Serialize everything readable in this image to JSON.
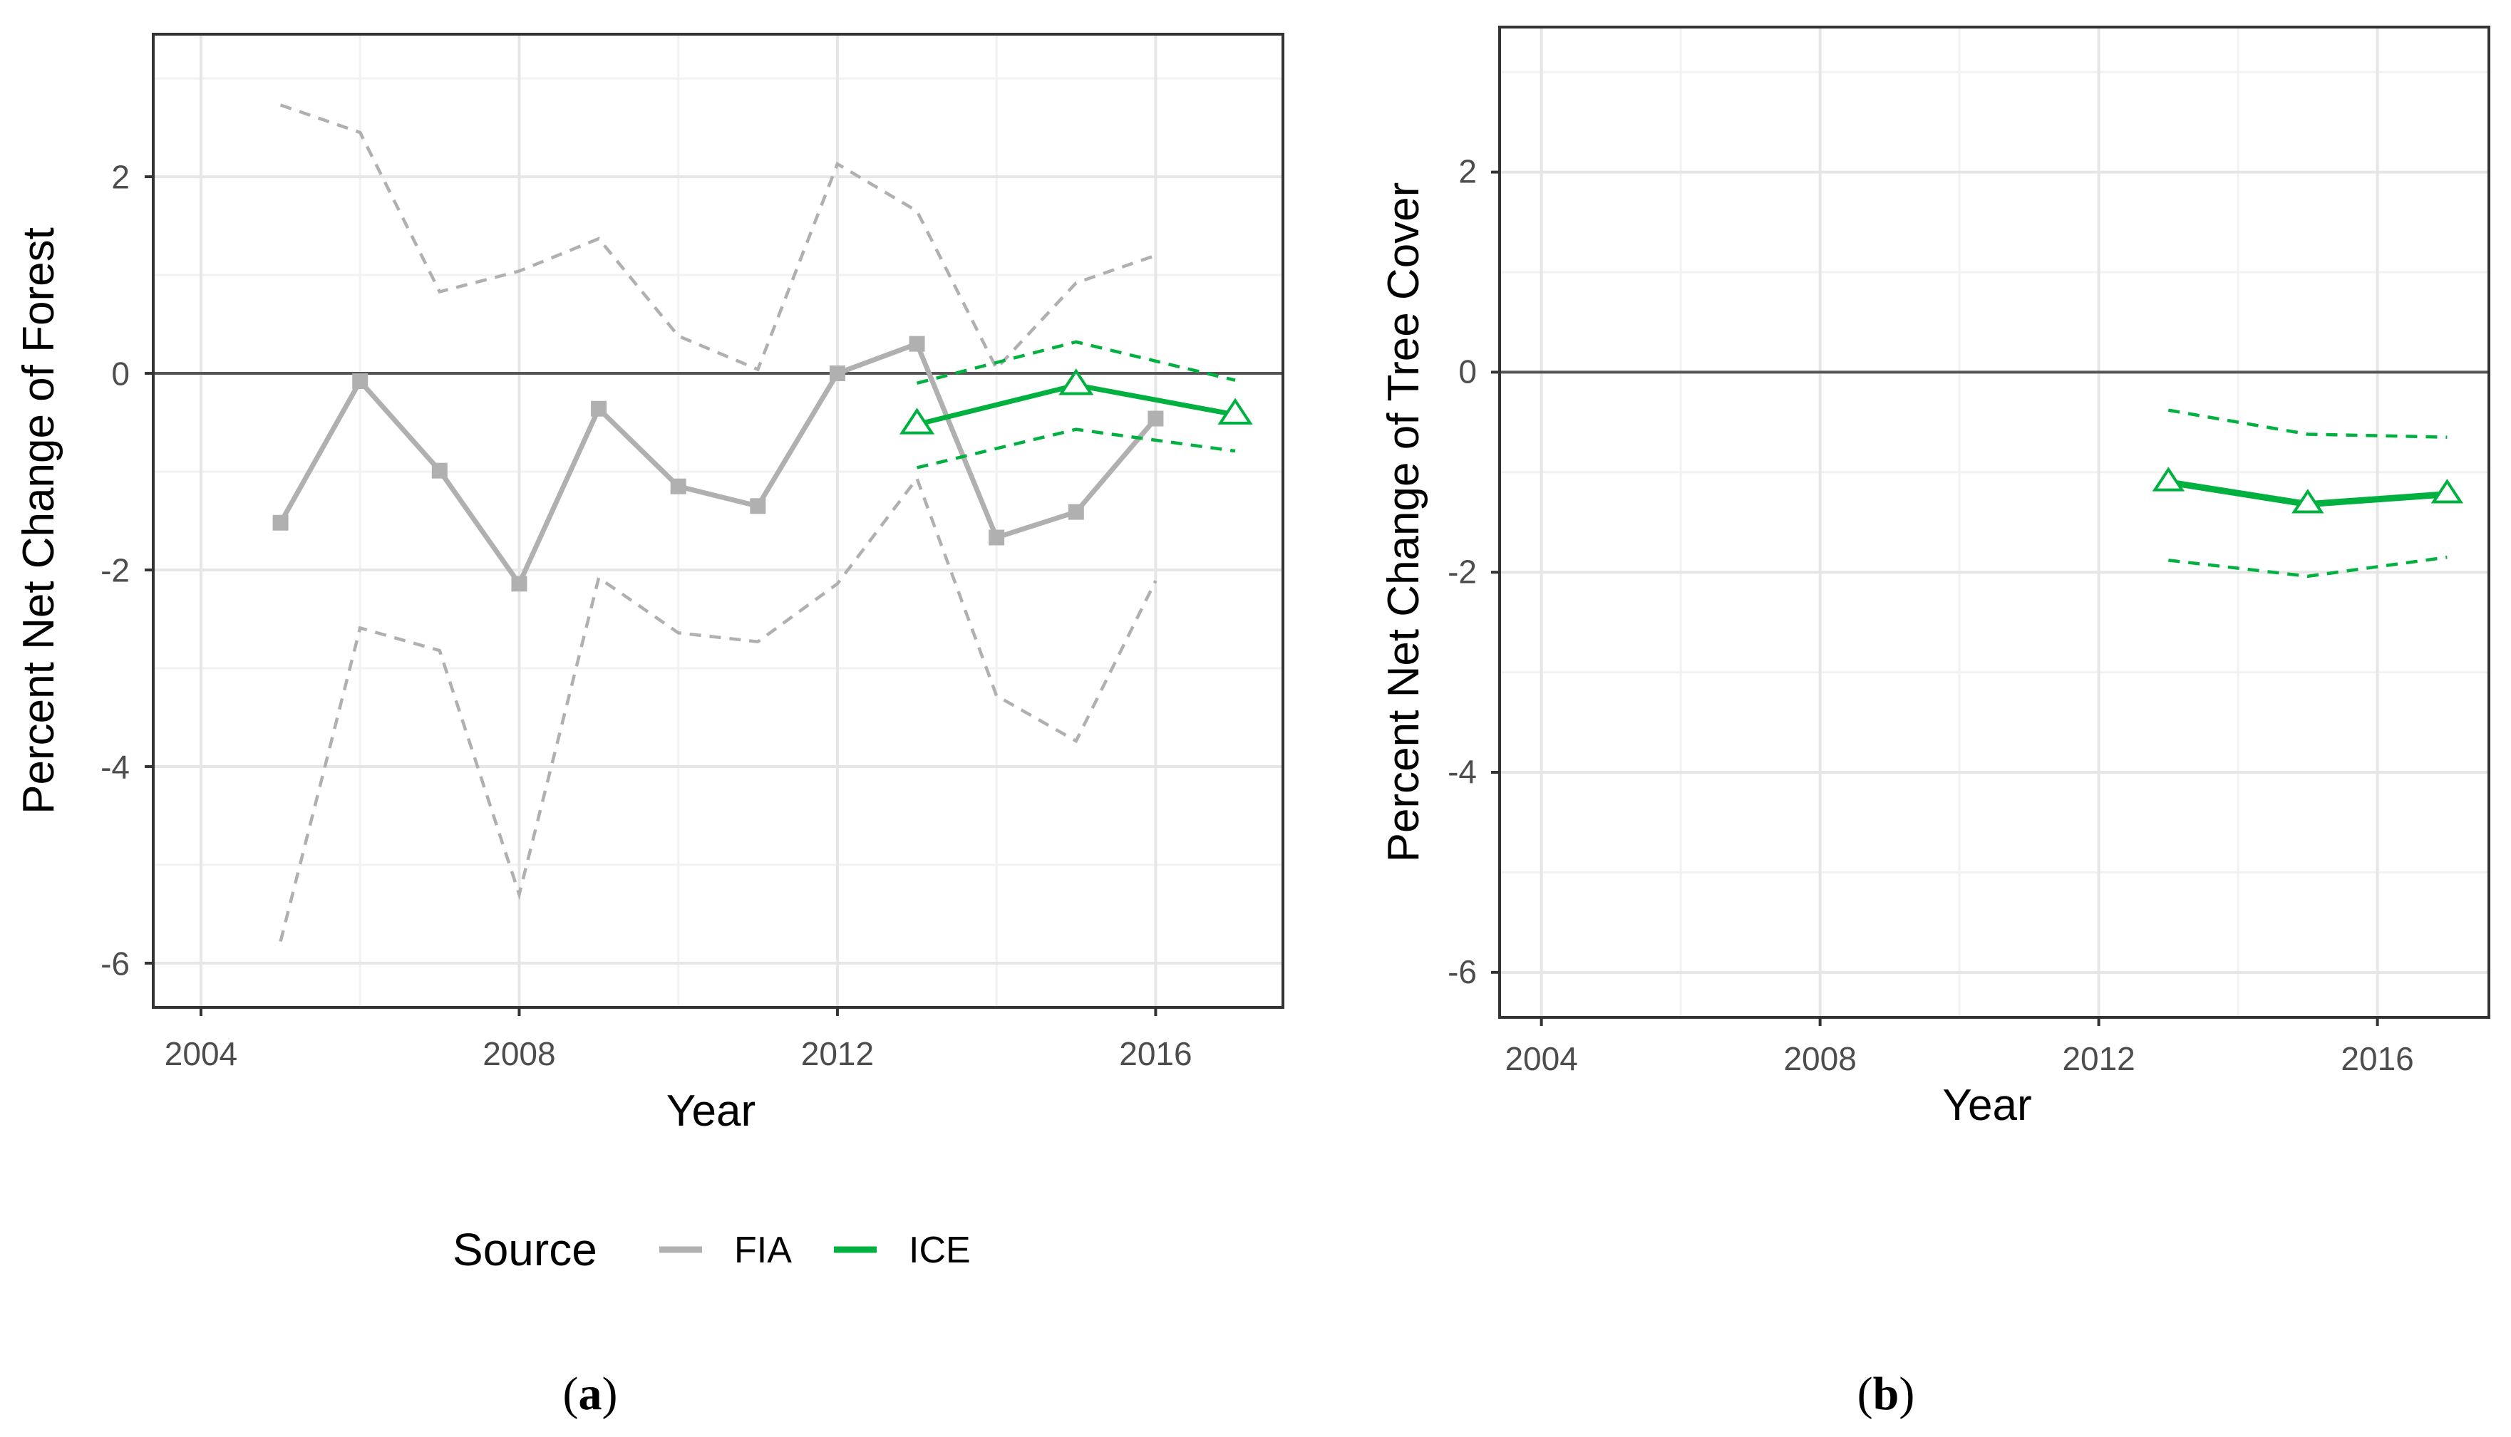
{
  "colors": {
    "fia": "#b0b0b0",
    "ice": "#00b140",
    "grid_major": "#e6e6e6",
    "grid_minor": "#f2f2f2",
    "zero_line": "#555555",
    "panel_border": "#333333"
  },
  "legend": {
    "title": "Source",
    "items": [
      {
        "label": "FIA",
        "color": "#b0b0b0"
      },
      {
        "label": "ICE",
        "color": "#00b140"
      }
    ]
  },
  "chart_data": [
    {
      "type": "line",
      "panel_label": "a",
      "xlabel": "Year",
      "ylabel": "Percent Net Change of Forest",
      "xlim": [
        2003.4,
        2017.6
      ],
      "ylim": [
        -6.45,
        3.45
      ],
      "x_ticks": [
        2004,
        2008,
        2012,
        2016
      ],
      "x_tick_labels": [
        "2004",
        "2008",
        "2012",
        "2016"
      ],
      "y_ticks": [
        -6,
        -4,
        -2,
        0,
        2
      ],
      "y_tick_labels": [
        "-6",
        "-4",
        "-2",
        "0",
        "2"
      ],
      "zero_line": 0,
      "series": [
        {
          "name": "FIA",
          "marker": "square",
          "x": [
            2005,
            2006,
            2007,
            2008,
            2009,
            2010,
            2011,
            2012,
            2013,
            2014,
            2015,
            2016
          ],
          "values": [
            -1.52,
            -0.08,
            -0.99,
            -2.14,
            -0.36,
            -1.15,
            -1.35,
            0.0,
            0.3,
            -1.67,
            -1.41,
            -0.46
          ],
          "upper": [
            2.73,
            2.45,
            0.83,
            1.04,
            1.37,
            0.38,
            0.04,
            2.13,
            1.65,
            0.05,
            0.92,
            1.2
          ],
          "lower": [
            -5.78,
            -2.59,
            -2.82,
            -5.3,
            -2.08,
            -2.64,
            -2.73,
            -2.14,
            -1.07,
            -3.28,
            -3.74,
            -2.11
          ]
        },
        {
          "name": "ICE",
          "marker": "triangle",
          "x": [
            2013,
            2015,
            2017
          ],
          "values": [
            -0.52,
            -0.12,
            -0.42
          ],
          "upper": [
            -0.1,
            0.32,
            -0.07
          ],
          "lower": [
            -0.96,
            -0.57,
            -0.79
          ]
        }
      ]
    },
    {
      "type": "line",
      "panel_label": "b",
      "xlabel": "Year",
      "ylabel": "Percent Net Change of Tree Cover",
      "xlim": [
        2003.4,
        2017.6
      ],
      "ylim": [
        -6.45,
        3.45
      ],
      "x_ticks": [
        2004,
        2008,
        2012,
        2016
      ],
      "x_tick_labels": [
        "2004",
        "2008",
        "2012",
        "2016"
      ],
      "y_ticks": [
        -6,
        -4,
        -2,
        0,
        2
      ],
      "y_tick_labels": [
        "-6",
        "-4",
        "-2",
        "0",
        "2"
      ],
      "zero_line": 0,
      "series": [
        {
          "name": "ICE",
          "marker": "triangle",
          "x": [
            2013,
            2015,
            2017
          ],
          "values": [
            -1.1,
            -1.32,
            -1.22
          ],
          "upper": [
            -0.38,
            -0.62,
            -0.65
          ],
          "lower": [
            -1.88,
            -2.04,
            -1.85
          ]
        }
      ]
    }
  ]
}
